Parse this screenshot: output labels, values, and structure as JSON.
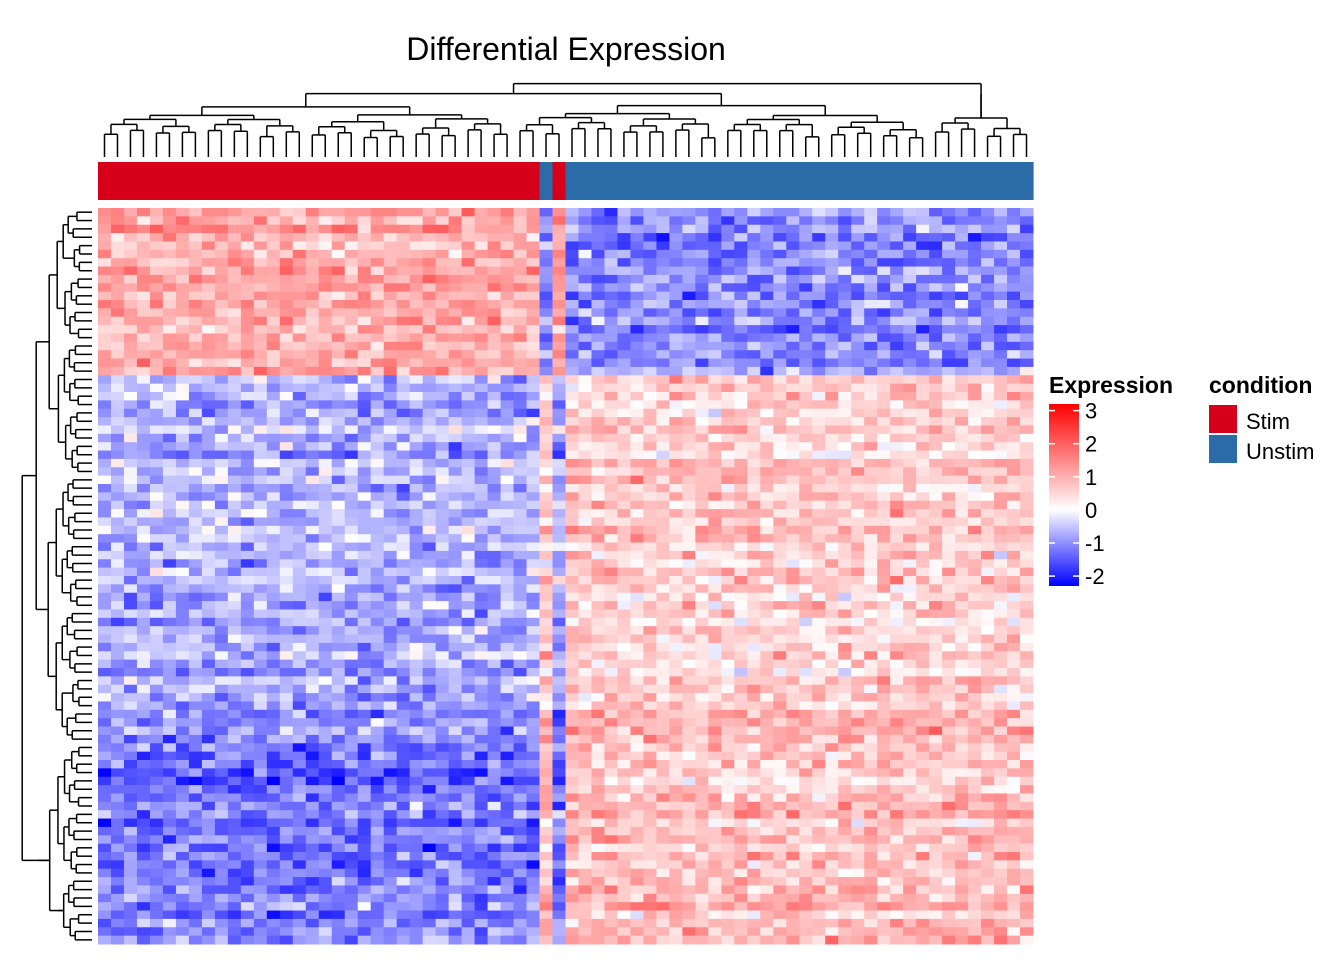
{
  "chart_data": {
    "type": "heatmap",
    "title": "Differential Expression",
    "n_rows": 88,
    "n_cols": 72,
    "row_dendrogram": true,
    "column_dendrogram": true,
    "column_annotation": {
      "name": "condition",
      "levels": [
        {
          "label": "Stim",
          "color": "#d7001a"
        },
        {
          "label": "Unstim",
          "color": "#2b6ca8"
        }
      ],
      "column_groups": [
        {
          "level": "Stim",
          "count": 34
        },
        {
          "level": "Unstim",
          "count": 1
        },
        {
          "level": "Stim",
          "count": 1
        },
        {
          "level": "Unstim",
          "count": 36
        }
      ]
    },
    "row_clusters": [
      {
        "rows": 20,
        "stim_mean": 1.0,
        "unstim_mean": -1.1
      },
      {
        "rows": 40,
        "stim_mean": -0.7,
        "unstim_mean": 0.6
      },
      {
        "rows": 28,
        "stim_mean": -1.2,
        "unstim_mean": 0.8
      }
    ],
    "color_legend": {
      "title": "Expression",
      "ticks": [
        3,
        2,
        1,
        0,
        -1,
        -2
      ],
      "range": [
        -2.3,
        3.2
      ],
      "colors": {
        "low": "#0000ff",
        "mid": "#ffffff",
        "high": "#ff0000"
      }
    },
    "grid": false,
    "legend_position": "right"
  }
}
